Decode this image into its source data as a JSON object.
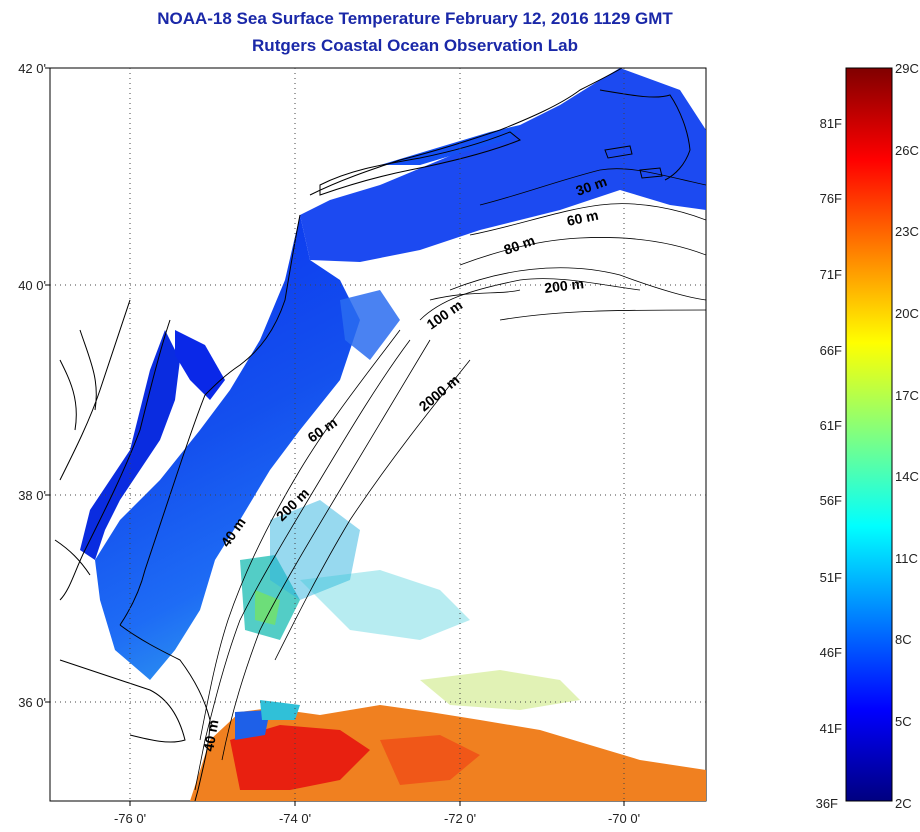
{
  "header": {
    "title": "NOAA-18 Sea Surface Temperature February 12, 2016 1129 GMT",
    "subtitle": "Rutgers Coastal Ocean Observation Lab"
  },
  "map": {
    "lat_labels": [
      "42 0'",
      "40 0'",
      "38 0'",
      "36 0'"
    ],
    "lon_labels": [
      "-76 0'",
      "-74 0'",
      "-72 0'",
      "-70 0'"
    ],
    "contour_labels": [
      "30 m",
      "60 m",
      "80 m",
      "200 m",
      "100 m",
      "2000 m",
      "60 m",
      "200 m",
      "40 m",
      "40 m"
    ]
  },
  "colorbar": {
    "stops": [
      "#000080",
      "#0000ff",
      "#0080ff",
      "#00ffff",
      "#80ff80",
      "#ffff00",
      "#ff8000",
      "#ff0000",
      "#800000"
    ],
    "fahrenheit": [
      "81F",
      "76F",
      "71F",
      "66F",
      "61F",
      "56F",
      "51F",
      "46F",
      "41F",
      "36F"
    ],
    "celsius": [
      "29C",
      "26C",
      "23C",
      "20C",
      "17C",
      "14C",
      "11C",
      "8C",
      "5C",
      "2C"
    ]
  }
}
